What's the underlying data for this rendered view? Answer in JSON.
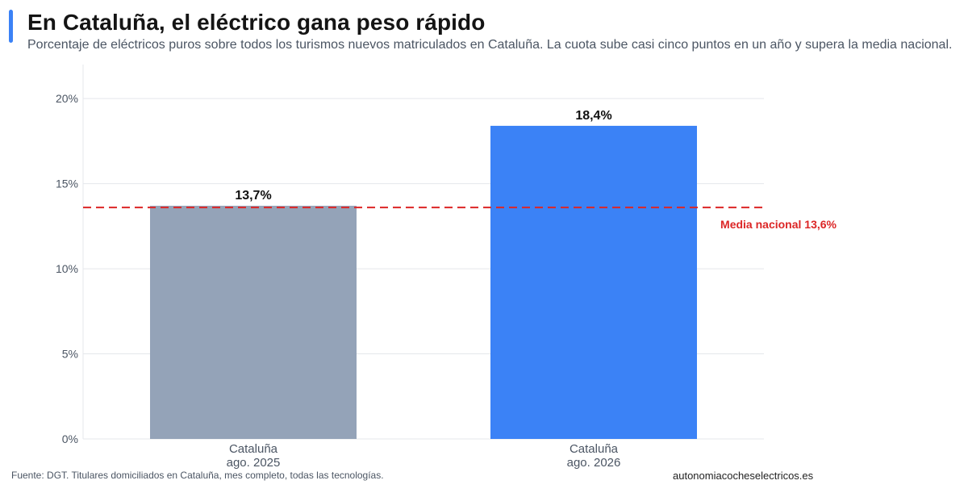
{
  "header": {
    "title": "En Cataluña, el eléctrico gana peso rápido",
    "subtitle": "Porcentaje de eléctricos puros sobre todos los turismos nuevos matriculados en Cataluña. La cuota sube casi cinco puntos en un año y supera la media nacional."
  },
  "footer": {
    "source": "Fuente: DGT. Titulares domiciliados en Cataluña, mes completo, todas las tecnologías.",
    "brand": "autonomiacocheselectricos.es"
  },
  "colors": {
    "accent": "#3b82f6",
    "bar_2025": "#94a3b8",
    "bar_2026": "#3b82f6",
    "reference": "#dc2626"
  },
  "chart_data": {
    "type": "bar",
    "categories": [
      [
        "Cataluña",
        "ago. 2025"
      ],
      [
        "Cataluña",
        "ago. 2026"
      ]
    ],
    "values": [
      13.7,
      18.4
    ],
    "value_labels": [
      "13,7%",
      "18,4%"
    ],
    "ylim": [
      0,
      22
    ],
    "yticks": [
      0,
      5,
      10,
      15,
      20
    ],
    "ytick_labels": [
      "0%",
      "5%",
      "10%",
      "15%",
      "20%"
    ],
    "grid": true,
    "reference_line": {
      "value": 13.6,
      "label": "Media nacional 13,6%"
    }
  }
}
